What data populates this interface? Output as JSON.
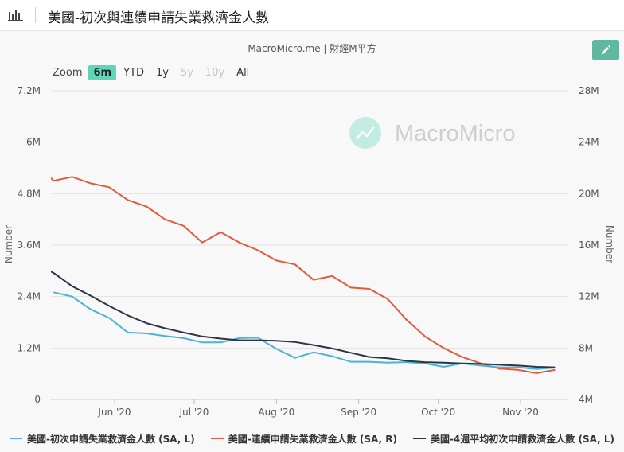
{
  "header": {
    "title": "美國-初次與連續申請失業救濟金人數"
  },
  "source": "MacroMicro.me | 財經M平方",
  "watermark": "MacroMicro",
  "zoom": {
    "label": "Zoom",
    "options": [
      {
        "label": "6m",
        "state": "active"
      },
      {
        "label": "YTD",
        "state": "normal"
      },
      {
        "label": "1y",
        "state": "normal"
      },
      {
        "label": "5y",
        "state": "disabled"
      },
      {
        "label": "10y",
        "state": "disabled"
      },
      {
        "label": "All",
        "state": "normal"
      }
    ]
  },
  "chart_data": {
    "type": "line",
    "x_ticks": [
      "Jun '20",
      "Jul '20",
      "Aug '20",
      "Sep '20",
      "Oct '20",
      "Nov '20"
    ],
    "left_axis": {
      "title": "Number",
      "ticks": [
        "0",
        "1.2M",
        "2.4M",
        "3.6M",
        "4.8M",
        "6M",
        "7.2M"
      ],
      "range": [
        0,
        7200000
      ]
    },
    "right_axis": {
      "title": "Number",
      "ticks": [
        "4M",
        "8M",
        "12M",
        "16M",
        "20M",
        "24M",
        "28M"
      ],
      "range": [
        4000000,
        28000000
      ]
    },
    "grid": true,
    "legend_position": "bottom",
    "x_range": [
      "2020-05-08",
      "2020-11-19"
    ],
    "series": [
      {
        "name": "美國-初次申請失業救濟金人數 (SA, L)",
        "axis": "left",
        "color": "#4bb3d3",
        "points": [
          [
            "2020-05-09",
            2500000
          ],
          [
            "2020-05-16",
            2400000
          ],
          [
            "2020-05-23",
            2100000
          ],
          [
            "2020-05-30",
            1900000
          ],
          [
            "2020-06-06",
            1560000
          ],
          [
            "2020-06-13",
            1540000
          ],
          [
            "2020-06-20",
            1480000
          ],
          [
            "2020-06-27",
            1430000
          ],
          [
            "2020-07-04",
            1330000
          ],
          [
            "2020-07-11",
            1330000
          ],
          [
            "2020-07-18",
            1430000
          ],
          [
            "2020-07-25",
            1440000
          ],
          [
            "2020-08-01",
            1180000
          ],
          [
            "2020-08-08",
            970000
          ],
          [
            "2020-08-15",
            1100000
          ],
          [
            "2020-08-22",
            1010000
          ],
          [
            "2020-08-29",
            880000
          ],
          [
            "2020-09-05",
            880000
          ],
          [
            "2020-09-12",
            860000
          ],
          [
            "2020-09-19",
            870000
          ],
          [
            "2020-09-26",
            840000
          ],
          [
            "2020-10-03",
            760000
          ],
          [
            "2020-10-10",
            840000
          ],
          [
            "2020-10-17",
            790000
          ],
          [
            "2020-10-24",
            750000
          ],
          [
            "2020-10-31",
            750000
          ],
          [
            "2020-11-07",
            710000
          ],
          [
            "2020-11-14",
            740000
          ]
        ]
      },
      {
        "name": "美國-連續申請失業救濟金人數 (SA, R)",
        "axis": "right",
        "color": "#e05a3c",
        "points": [
          [
            "2020-05-02",
            22500000
          ],
          [
            "2020-05-09",
            21000000
          ],
          [
            "2020-05-16",
            21300000
          ],
          [
            "2020-05-23",
            20800000
          ],
          [
            "2020-05-30",
            20500000
          ],
          [
            "2020-06-06",
            19500000
          ],
          [
            "2020-06-13",
            19000000
          ],
          [
            "2020-06-20",
            18000000
          ],
          [
            "2020-06-27",
            17500000
          ],
          [
            "2020-07-04",
            16200000
          ],
          [
            "2020-07-11",
            17000000
          ],
          [
            "2020-07-18",
            16200000
          ],
          [
            "2020-07-25",
            15600000
          ],
          [
            "2020-08-01",
            14800000
          ],
          [
            "2020-08-08",
            14500000
          ],
          [
            "2020-08-15",
            13300000
          ],
          [
            "2020-08-22",
            13600000
          ],
          [
            "2020-08-29",
            12700000
          ],
          [
            "2020-09-05",
            12600000
          ],
          [
            "2020-09-12",
            11800000
          ],
          [
            "2020-09-19",
            10200000
          ],
          [
            "2020-09-26",
            8900000
          ],
          [
            "2020-10-03",
            8000000
          ],
          [
            "2020-10-10",
            7300000
          ],
          [
            "2020-10-17",
            6800000
          ],
          [
            "2020-10-24",
            6400000
          ],
          [
            "2020-10-31",
            6300000
          ],
          [
            "2020-11-07",
            6050000
          ],
          [
            "2020-11-14",
            6300000
          ]
        ]
      },
      {
        "name": "美國-4週平均初次申請救濟金人數 (SA, L)",
        "axis": "left",
        "color": "#2c3547",
        "points": [
          [
            "2020-05-02",
            3180000
          ],
          [
            "2020-05-09",
            2950000
          ],
          [
            "2020-05-16",
            2640000
          ],
          [
            "2020-05-23",
            2420000
          ],
          [
            "2020-05-30",
            2180000
          ],
          [
            "2020-06-06",
            1960000
          ],
          [
            "2020-06-13",
            1780000
          ],
          [
            "2020-06-20",
            1660000
          ],
          [
            "2020-06-27",
            1560000
          ],
          [
            "2020-07-04",
            1470000
          ],
          [
            "2020-07-11",
            1420000
          ],
          [
            "2020-07-18",
            1380000
          ],
          [
            "2020-07-25",
            1380000
          ],
          [
            "2020-08-01",
            1370000
          ],
          [
            "2020-08-08",
            1340000
          ],
          [
            "2020-08-15",
            1270000
          ],
          [
            "2020-08-22",
            1190000
          ],
          [
            "2020-08-29",
            1090000
          ],
          [
            "2020-09-05",
            990000
          ],
          [
            "2020-09-12",
            960000
          ],
          [
            "2020-09-19",
            900000
          ],
          [
            "2020-09-26",
            870000
          ],
          [
            "2020-10-03",
            860000
          ],
          [
            "2020-10-10",
            840000
          ],
          [
            "2020-10-17",
            830000
          ],
          [
            "2020-10-24",
            810000
          ],
          [
            "2020-10-31",
            790000
          ],
          [
            "2020-11-07",
            760000
          ],
          [
            "2020-11-14",
            750000
          ]
        ]
      }
    ]
  }
}
